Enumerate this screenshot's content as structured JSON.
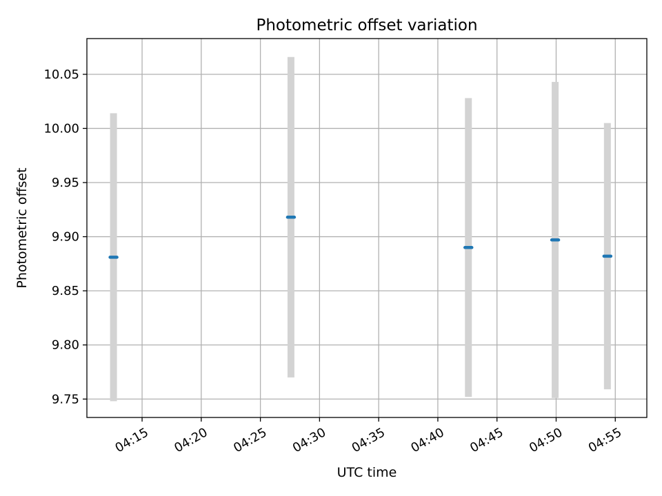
{
  "chart_data": {
    "type": "scatter",
    "title": "Photometric offset variation",
    "xlabel": "UTC time",
    "ylabel": "Photometric offset",
    "x_range": [
      "04:10:20",
      "04:57:40"
    ],
    "ylim": [
      9.733,
      10.083
    ],
    "x_ticks": [
      "04:15",
      "04:20",
      "04:25",
      "04:30",
      "04:35",
      "04:40",
      "04:45",
      "04:50",
      "04:55"
    ],
    "y_ticks": [
      "9.75",
      "9.80",
      "9.85",
      "9.90",
      "9.95",
      "10.00",
      "10.05"
    ],
    "grid": true,
    "marker_color": "#1f77b4",
    "errorbar_color": "#d3d3d3",
    "points": [
      {
        "time": "04:12:35",
        "value": 9.881,
        "error": 0.133
      },
      {
        "time": "04:27:35",
        "value": 9.918,
        "error": 0.148
      },
      {
        "time": "04:42:35",
        "value": 9.89,
        "error": 0.138
      },
      {
        "time": "04:49:55",
        "value": 9.897,
        "error": 0.146
      },
      {
        "time": "04:54:20",
        "value": 9.882,
        "error": 0.123
      }
    ]
  }
}
